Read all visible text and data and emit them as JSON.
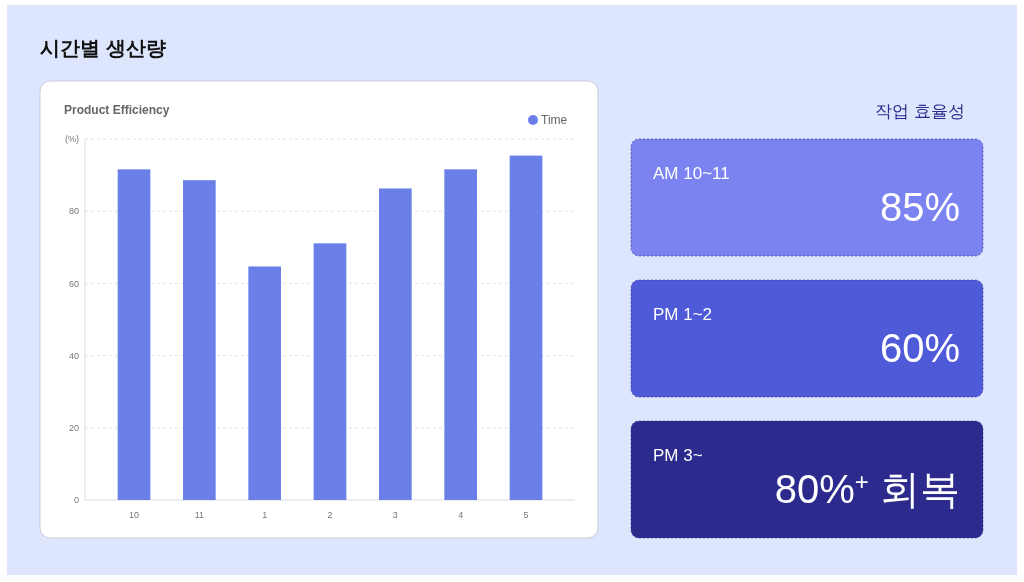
{
  "chart_data": [
    {
      "type": "bar",
      "title": "시간별 생산량",
      "subtitle": "Product Efficiency",
      "categories": [
        "10",
        "11",
        "1",
        "2",
        "3",
        "4",
        "5"
      ],
      "series": [
        {
          "name": "Time",
          "color": "#6a80e8",
          "values": [
            91.6,
            88.6,
            64.7,
            71.1,
            86.3,
            91.6,
            95.4
          ]
        }
      ],
      "ylim": [
        0,
        100
      ],
      "yticks": [
        0,
        20,
        40,
        60,
        80,
        {
          "value": 100,
          "label": "(%)"
        }
      ],
      "grid": "y",
      "legend": "top right"
    },
    {
      "type": "other",
      "title": "작업 효율성",
      "colors": [
        "#7a83ef",
        "#4e5ad7",
        "#2c2a8c"
      ],
      "annotations": [
        "AM 10~11",
        "85%",
        "PM 1~2",
        "60%",
        "PM 3~",
        "80%$^{+}$ 회복"
      ]
    }
  ]
}
